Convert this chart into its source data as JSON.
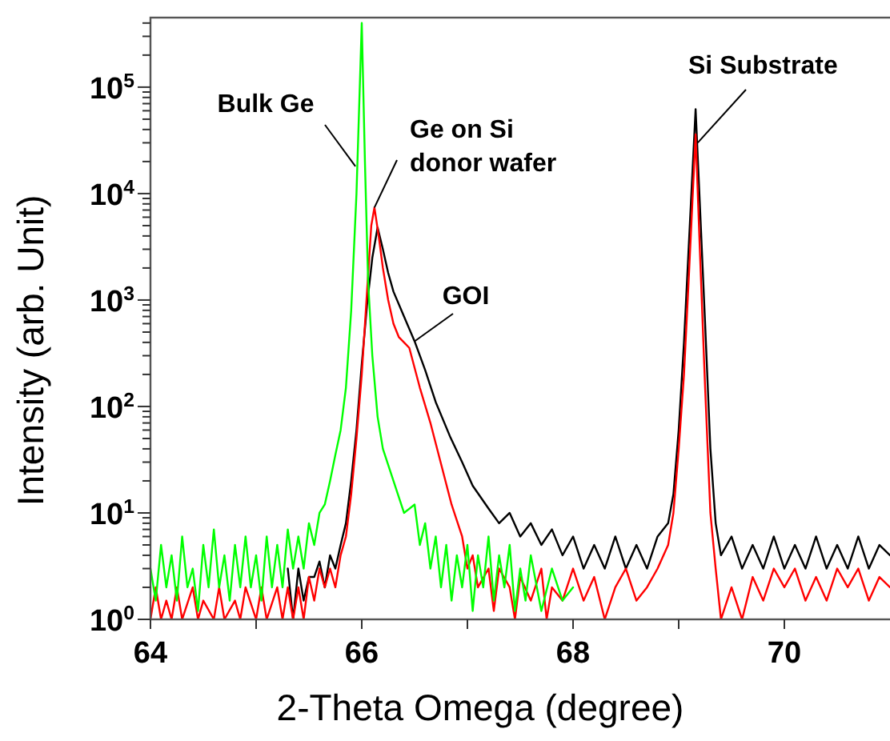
{
  "chart_data": {
    "type": "line",
    "xlabel": "2-Theta Omega (degree)",
    "ylabel": "Intensity (arb. Unit)",
    "log": "y",
    "grid": false,
    "marker": "none",
    "line_style": "solid",
    "xlim": [
      64,
      71
    ],
    "xticks": [
      64,
      {
        "value": 65,
        "label": null
      },
      66,
      {
        "value": 67,
        "label": null
      },
      68,
      {
        "value": 69,
        "label": null
      },
      70
    ],
    "ylim": [
      1,
      450000
    ],
    "yticks": [
      {
        "value": 1,
        "label": "10$^{0}$"
      },
      {
        "value": 2,
        "label": null
      },
      {
        "value": 3,
        "label": null
      },
      {
        "value": 4,
        "label": null
      },
      {
        "value": 5,
        "label": null
      },
      {
        "value": 6,
        "label": null
      },
      {
        "value": 7,
        "label": null
      },
      {
        "value": 8,
        "label": null
      },
      {
        "value": 9,
        "label": null
      },
      {
        "value": 10,
        "label": "10$^{1}$"
      },
      {
        "value": 20,
        "label": null
      },
      {
        "value": 30,
        "label": null
      },
      {
        "value": 40,
        "label": null
      },
      {
        "value": 50,
        "label": null
      },
      {
        "value": 60,
        "label": null
      },
      {
        "value": 70,
        "label": null
      },
      {
        "value": 80,
        "label": null
      },
      {
        "value": 90,
        "label": null
      },
      {
        "value": 100,
        "label": "10$^{2}$"
      },
      {
        "value": 200,
        "label": null
      },
      {
        "value": 300,
        "label": null
      },
      {
        "value": 400,
        "label": null
      },
      {
        "value": 500,
        "label": null
      },
      {
        "value": 600,
        "label": null
      },
      {
        "value": 700,
        "label": null
      },
      {
        "value": 800,
        "label": null
      },
      {
        "value": 900,
        "label": null
      },
      {
        "value": 1000,
        "label": "10$^{3}$"
      },
      {
        "value": 2000,
        "label": null
      },
      {
        "value": 3000,
        "label": null
      },
      {
        "value": 4000,
        "label": null
      },
      {
        "value": 5000,
        "label": null
      },
      {
        "value": 6000,
        "label": null
      },
      {
        "value": 7000,
        "label": null
      },
      {
        "value": 8000,
        "label": null
      },
      {
        "value": 9000,
        "label": null
      },
      {
        "value": 10000,
        "label": "10$^{4}$"
      },
      {
        "value": 20000,
        "label": null
      },
      {
        "value": 30000,
        "label": null
      },
      {
        "value": 40000,
        "label": null
      },
      {
        "value": 50000,
        "label": null
      },
      {
        "value": 60000,
        "label": null
      },
      {
        "value": 70000,
        "label": null
      },
      {
        "value": 80000,
        "label": null
      },
      {
        "value": 90000,
        "label": null
      },
      {
        "value": 100000,
        "label": "10$^{5}$"
      },
      {
        "value": 200000,
        "label": null
      },
      {
        "value": 300000,
        "label": null
      },
      {
        "value": 400000,
        "label": null
      }
    ],
    "series": [
      {
        "color": "#000000",
        "x": [
          65.3,
          65.35,
          65.4,
          65.45,
          65.5,
          65.55,
          65.6,
          65.65,
          65.7,
          65.75,
          65.8,
          65.85,
          65.9,
          65.95,
          66.0,
          66.05,
          66.1,
          66.15,
          66.2,
          66.25,
          66.3,
          66.4,
          66.5,
          66.6,
          66.7,
          66.84,
          66.95,
          67.05,
          67.2,
          67.3,
          67.4,
          67.5,
          67.6,
          67.7,
          67.8,
          67.9,
          68.0,
          68.1,
          68.2,
          68.3,
          68.4,
          68.5,
          68.6,
          68.7,
          68.8,
          68.9,
          68.95,
          69.0,
          69.05,
          69.1,
          69.16,
          69.2,
          69.25,
          69.3,
          69.35,
          69.4,
          69.5,
          69.6,
          69.7,
          69.8,
          69.9,
          70.0,
          70.1,
          70.2,
          70.3,
          70.4,
          70.5,
          70.6,
          70.7,
          70.8,
          70.9,
          71.0
        ],
        "values": [
          3,
          1,
          3,
          1.5,
          2.5,
          2.5,
          3.5,
          2,
          4,
          3,
          5,
          8,
          20,
          60,
          250,
          900,
          2500,
          4800,
          3000,
          1800,
          1200,
          700,
          410,
          220,
          110,
          51,
          30,
          18,
          11,
          8,
          10,
          6,
          8,
          5,
          7,
          4,
          6,
          3,
          5,
          3,
          6,
          3,
          5,
          3,
          6,
          8,
          15,
          60,
          400,
          4000,
          62000,
          8000,
          600,
          40,
          8,
          4,
          6,
          3,
          5,
          3,
          6,
          3,
          5,
          3,
          6,
          3,
          5,
          3,
          6,
          3,
          5,
          4
        ]
      },
      {
        "color": "#ff0000",
        "x": [
          64.0,
          64.05,
          64.1,
          64.15,
          64.2,
          64.25,
          64.3,
          64.4,
          64.45,
          64.5,
          64.6,
          64.65,
          64.7,
          64.8,
          64.85,
          64.9,
          65.0,
          65.05,
          65.1,
          65.2,
          65.25,
          65.3,
          65.35,
          65.4,
          65.45,
          65.5,
          65.55,
          65.6,
          65.65,
          65.7,
          65.75,
          65.8,
          65.85,
          65.9,
          65.95,
          66.0,
          66.05,
          66.09,
          66.12,
          66.16,
          66.2,
          66.25,
          66.3,
          66.35,
          66.45,
          66.55,
          66.65,
          66.75,
          66.85,
          66.95,
          67.0,
          67.05,
          67.1,
          67.2,
          67.25,
          67.3,
          67.4,
          67.45,
          67.5,
          67.6,
          67.7,
          67.75,
          67.8,
          67.9,
          68.0,
          68.1,
          68.2,
          68.3,
          68.4,
          68.5,
          68.6,
          68.7,
          68.8,
          68.9,
          68.95,
          69.0,
          69.05,
          69.1,
          69.16,
          69.2,
          69.25,
          69.3,
          69.35,
          69.4,
          69.5,
          69.6,
          69.7,
          69.8,
          69.9,
          70.0,
          70.1,
          70.2,
          70.3,
          70.4,
          70.5,
          70.6,
          70.7,
          70.8,
          70.9,
          71.0
        ],
        "values": [
          1,
          2,
          1,
          1.5,
          1,
          2,
          1,
          2,
          1,
          1.5,
          1,
          2,
          1,
          1.5,
          1,
          2,
          1,
          2,
          1,
          2,
          1,
          2,
          1,
          2,
          1,
          2.5,
          1.5,
          3,
          2,
          3,
          2,
          4,
          6,
          15,
          50,
          200,
          1200,
          5000,
          7400,
          4000,
          2000,
          1000,
          600,
          450,
          355,
          150,
          70,
          29,
          12,
          6,
          3,
          4,
          2,
          3,
          1.2,
          3,
          2,
          1,
          2.5,
          1.5,
          3,
          1,
          2,
          1.5,
          3,
          1.5,
          2.5,
          1,
          2,
          3,
          1.5,
          2,
          3,
          5,
          10,
          40,
          200,
          2000,
          36000,
          3000,
          150,
          10,
          3,
          1,
          2,
          1,
          2.5,
          1.5,
          3,
          2,
          3,
          1.5,
          2.5,
          1.5,
          3,
          2,
          3,
          1.5,
          2.5,
          2
        ]
      },
      {
        "color": "#00ff00",
        "x": [
          64.0,
          64.05,
          64.1,
          64.15,
          64.2,
          64.25,
          64.3,
          64.35,
          64.4,
          64.45,
          64.5,
          64.55,
          64.6,
          64.65,
          64.7,
          64.75,
          64.8,
          64.85,
          64.9,
          64.95,
          65.0,
          65.05,
          65.1,
          65.15,
          65.2,
          65.25,
          65.3,
          65.35,
          65.4,
          65.45,
          65.5,
          65.55,
          65.6,
          65.65,
          65.7,
          65.75,
          65.8,
          65.85,
          65.9,
          65.95,
          66.0,
          66.03,
          66.06,
          66.1,
          66.15,
          66.2,
          66.3,
          66.4,
          66.5,
          66.55,
          66.6,
          66.65,
          66.7,
          66.75,
          66.8,
          66.85,
          66.9,
          66.95,
          67.0,
          67.05,
          67.1,
          67.15,
          67.2,
          67.25,
          67.3,
          67.35,
          67.4,
          67.45,
          67.5,
          67.55,
          67.6,
          67.7,
          67.8,
          67.9,
          68.0
        ],
        "values": [
          3,
          1.5,
          5,
          2,
          4,
          1.5,
          6,
          2,
          3,
          1.2,
          5,
          2,
          7,
          2,
          4,
          1.5,
          5,
          2,
          6,
          2,
          4,
          1.5,
          6,
          2,
          5,
          2,
          7,
          3,
          6,
          3,
          8,
          5,
          10,
          12,
          20,
          35,
          60,
          150,
          800,
          10000,
          400000,
          20000,
          1500,
          300,
          80,
          40,
          20,
          10,
          12,
          5,
          8,
          3,
          6,
          2,
          5,
          1.5,
          4,
          2,
          5,
          1.2,
          4,
          2,
          6,
          1.5,
          4,
          2,
          5,
          1.2,
          3,
          1.5,
          4,
          1.2,
          3,
          1.5,
          2
        ]
      }
    ],
    "annotations": [
      {
        "text": "Bulk Ge",
        "x": 65.94,
        "y": 18000
      },
      {
        "text": "Ge on Si\ndonor wafer",
        "x": 66.12,
        "y": 7400
      },
      {
        "text": "GOI",
        "x": 66.5,
        "y": 410
      },
      {
        "text": "Si Substrate",
        "x": 69.18,
        "y": 30000
      }
    ]
  }
}
